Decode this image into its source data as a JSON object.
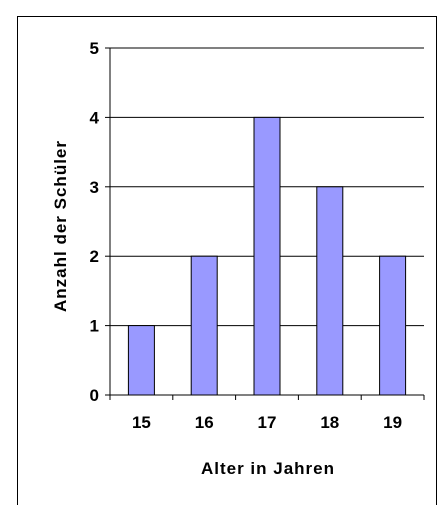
{
  "chart_data": {
    "type": "bar",
    "title": "",
    "categories": [
      "15",
      "16",
      "17",
      "18",
      "19"
    ],
    "values": [
      1,
      2,
      4,
      3,
      2
    ],
    "xlabel": "Alter in Jahren",
    "ylabel": "Anzahl der Schüler",
    "ylim": [
      0,
      5
    ],
    "yticks": [
      "0",
      "1",
      "2",
      "3",
      "4",
      "5"
    ],
    "grid": "horizontal",
    "legend": "none",
    "bar_color": "#9999ff",
    "bar_stroke": "#000000",
    "grid_color": "#000000"
  }
}
